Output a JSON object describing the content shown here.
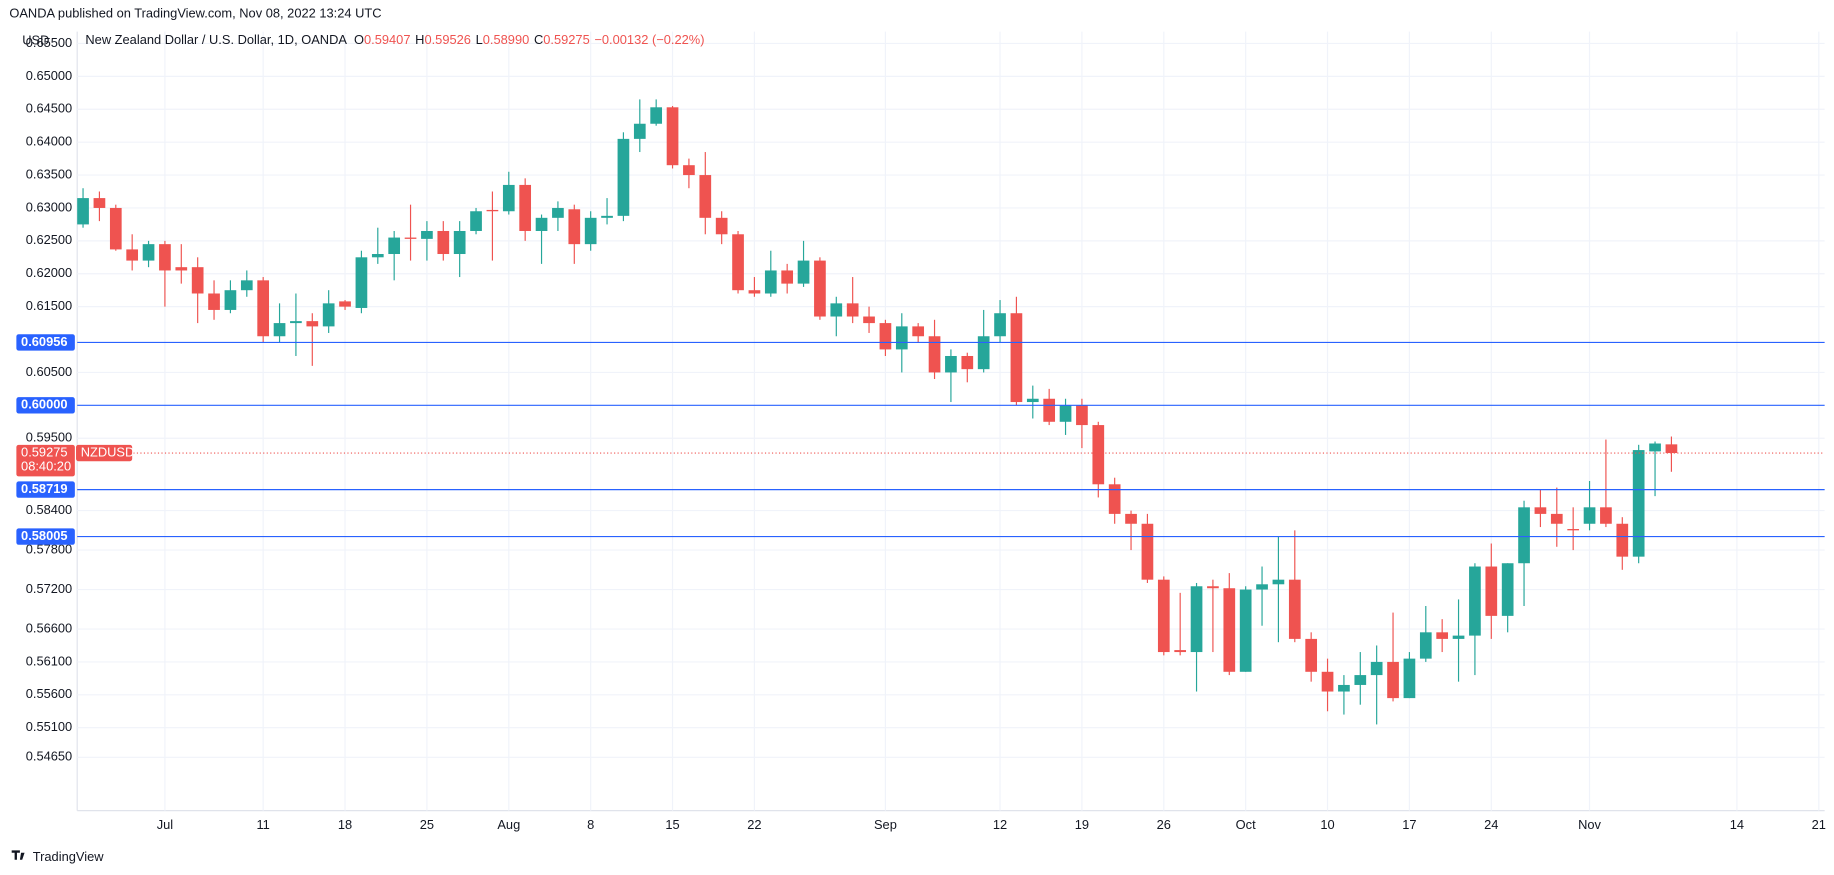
{
  "header": {
    "published": "OANDA published on TradingView.com, Nov 08, 2022 13:24 UTC",
    "ohlc": [
      {
        "key": "O",
        "text": "0.59407"
      },
      {
        "key": "H",
        "text": "0.59526"
      },
      {
        "key": "L",
        "text": "0.58990"
      },
      {
        "key": "C",
        "text": "0.59275"
      }
    ],
    "change": "−0.00132 (−0.22%)"
  },
  "footer": "TradingView",
  "chart_data": {
    "type": "candlestick",
    "title": "New Zealand Dollar / U.S. Dollar, 1D, OANDA",
    "y_axis_label": "USD",
    "up_color": "#26a69a",
    "down_color": "#ef5350",
    "line_color": "#2962ff",
    "categories": [
      null,
      null,
      null,
      null,
      null,
      "Jul",
      null,
      null,
      null,
      null,
      null,
      "11",
      null,
      null,
      null,
      null,
      "18",
      null,
      null,
      null,
      null,
      "25",
      null,
      null,
      null,
      null,
      "Aug",
      null,
      null,
      null,
      null,
      "8",
      null,
      null,
      null,
      null,
      "15",
      null,
      null,
      null,
      null,
      "22",
      null,
      null,
      null,
      null,
      null,
      null,
      null,
      "Sep",
      null,
      null,
      null,
      null,
      null,
      null,
      "12",
      null,
      null,
      null,
      null,
      "19",
      null,
      null,
      null,
      null,
      "26",
      null,
      null,
      null,
      null,
      "Oct",
      null,
      null,
      null,
      null,
      "10",
      null,
      null,
      null,
      null,
      "17",
      null,
      null,
      null,
      null,
      "24",
      null,
      null,
      null,
      null,
      null,
      "Nov",
      null,
      null,
      null,
      null,
      null,
      null,
      null,
      null,
      "14",
      null,
      null,
      null,
      null,
      "21"
    ],
    "open": [
      0.6275,
      0.6315,
      0.63,
      0.6237,
      0.622,
      0.6245,
      0.621,
      0.621,
      0.617,
      0.6145,
      0.6175,
      0.619,
      0.6105,
      0.6125,
      0.6128,
      0.612,
      0.6158,
      0.6148,
      0.6225,
      0.623,
      0.6255,
      0.6253,
      0.6265,
      0.623,
      0.6265,
      0.6297,
      0.6295,
      0.6335,
      0.6265,
      0.6285,
      0.6298,
      0.6245,
      0.6285,
      0.6288,
      0.6405,
      0.6428,
      0.6453,
      0.6365,
      0.635,
      0.6285,
      0.626,
      0.6175,
      0.617,
      0.6205,
      0.6185,
      0.622,
      0.6135,
      0.6155,
      0.6135,
      0.6125,
      0.6085,
      0.612,
      0.6105,
      0.605,
      0.6075,
      0.6055,
      0.6105,
      0.614,
      0.6005,
      0.601,
      0.5975,
      0.6,
      0.597,
      0.588,
      0.5835,
      0.582,
      0.5735,
      0.5628,
      0.5625,
      0.5725,
      0.5722,
      0.5595,
      0.572,
      0.5728,
      0.5735,
      0.5645,
      0.5595,
      0.5565,
      0.5575,
      0.559,
      0.561,
      0.5555,
      0.5615,
      0.5655,
      0.5645,
      0.565,
      0.5755,
      0.568,
      0.576,
      0.5845,
      0.5835,
      0.5812,
      0.582,
      0.5845,
      0.582,
      0.577,
      0.593,
      0.59407,
      null,
      null,
      null,
      null,
      null,
      null,
      null,
      null,
      null
    ],
    "high": [
      0.633,
      0.6325,
      0.6305,
      0.626,
      0.625,
      0.625,
      0.6245,
      0.6225,
      0.619,
      0.619,
      0.6205,
      0.6195,
      0.6155,
      0.617,
      0.614,
      0.6175,
      0.616,
      0.6235,
      0.627,
      0.6265,
      0.6305,
      0.628,
      0.628,
      0.628,
      0.63,
      0.6325,
      0.6355,
      0.6345,
      0.629,
      0.631,
      0.6305,
      0.6295,
      0.6315,
      0.6415,
      0.6465,
      0.6465,
      0.6455,
      0.6375,
      0.6385,
      0.6295,
      0.6265,
      0.6195,
      0.6235,
      0.6215,
      0.625,
      0.6225,
      0.6165,
      0.6195,
      0.615,
      0.613,
      0.614,
      0.6125,
      0.613,
      0.6085,
      0.608,
      0.6145,
      0.616,
      0.6165,
      0.603,
      0.6025,
      0.601,
      0.601,
      0.5975,
      0.589,
      0.584,
      0.5835,
      0.574,
      0.5715,
      0.573,
      0.5735,
      0.5745,
      0.5725,
      0.5755,
      0.58,
      0.581,
      0.5655,
      0.5615,
      0.559,
      0.5625,
      0.5635,
      0.5685,
      0.5625,
      0.5695,
      0.5675,
      0.5705,
      0.576,
      0.579,
      0.576,
      0.5855,
      0.5872,
      0.5875,
      0.5845,
      0.5885,
      0.5948,
      0.583,
      0.594,
      0.5945,
      0.59526,
      null,
      null,
      null,
      null,
      null,
      null,
      null,
      null,
      null
    ],
    "low": [
      0.627,
      0.628,
      0.6235,
      0.6205,
      0.621,
      0.615,
      0.6185,
      0.6125,
      0.613,
      0.614,
      0.6165,
      0.6095,
      0.6095,
      0.6075,
      0.606,
      0.611,
      0.6145,
      0.614,
      0.6215,
      0.619,
      0.622,
      0.622,
      0.622,
      0.6195,
      0.626,
      0.622,
      0.629,
      0.625,
      0.6215,
      0.6265,
      0.6215,
      0.6235,
      0.6275,
      0.628,
      0.6385,
      0.6425,
      0.636,
      0.633,
      0.626,
      0.6245,
      0.617,
      0.6165,
      0.6165,
      0.617,
      0.618,
      0.613,
      0.6105,
      0.6125,
      0.611,
      0.6075,
      0.605,
      0.6095,
      0.604,
      0.6005,
      0.6035,
      0.605,
      0.6095,
      0.6,
      0.598,
      0.597,
      0.5955,
      0.5935,
      0.586,
      0.582,
      0.578,
      0.573,
      0.562,
      0.562,
      0.5565,
      0.5625,
      0.559,
      0.5595,
      0.5665,
      0.564,
      0.564,
      0.558,
      0.5535,
      0.553,
      0.5545,
      0.5515,
      0.555,
      0.5555,
      0.561,
      0.5625,
      0.558,
      0.559,
      0.5645,
      0.5655,
      0.5695,
      0.5815,
      0.5785,
      0.578,
      0.581,
      0.5815,
      0.575,
      0.576,
      0.5862,
      0.5899,
      null,
      null,
      null,
      null,
      null,
      null,
      null,
      null,
      null
    ],
    "close": [
      0.6315,
      0.63,
      0.6237,
      0.622,
      0.6245,
      0.6205,
      0.6205,
      0.617,
      0.6145,
      0.6175,
      0.619,
      0.6105,
      0.6125,
      0.6128,
      0.612,
      0.6155,
      0.615,
      0.6225,
      0.623,
      0.6255,
      0.6253,
      0.6265,
      0.623,
      0.6265,
      0.6295,
      0.6295,
      0.6335,
      0.6265,
      0.6285,
      0.63,
      0.6245,
      0.6285,
      0.6288,
      0.6405,
      0.6428,
      0.6453,
      0.6365,
      0.635,
      0.6285,
      0.626,
      0.6175,
      0.617,
      0.6205,
      0.6185,
      0.622,
      0.6135,
      0.6155,
      0.6135,
      0.6125,
      0.6085,
      0.612,
      0.6105,
      0.605,
      0.6075,
      0.6055,
      0.6105,
      0.614,
      0.6005,
      0.601,
      0.5975,
      0.6,
      0.597,
      0.588,
      0.5835,
      0.582,
      0.5735,
      0.5625,
      0.5625,
      0.5725,
      0.5722,
      0.5595,
      0.572,
      0.5728,
      0.5735,
      0.5645,
      0.5595,
      0.5565,
      0.5575,
      0.559,
      0.561,
      0.5555,
      0.5615,
      0.5655,
      0.5645,
      0.565,
      0.5755,
      0.568,
      0.576,
      0.5845,
      0.5835,
      0.582,
      0.581,
      0.5845,
      0.582,
      0.577,
      0.5932,
      0.5942,
      0.59275,
      null,
      null,
      null,
      null,
      null,
      null,
      null,
      null,
      null
    ],
    "ylim": [
      0.5384,
      0.6568
    ],
    "yticks": [
      {
        "value": 0.655,
        "label": "0.65500"
      },
      {
        "value": 0.65,
        "label": "0.65000"
      },
      {
        "value": 0.645,
        "label": "0.64500"
      },
      {
        "value": 0.64,
        "label": "0.64000"
      },
      {
        "value": 0.635,
        "label": "0.63500"
      },
      {
        "value": 0.63,
        "label": "0.63000"
      },
      {
        "value": 0.625,
        "label": "0.62500"
      },
      {
        "value": 0.62,
        "label": "0.62000"
      },
      {
        "value": 0.615,
        "label": "0.61500"
      },
      {
        "value": 0.605,
        "label": "0.60500"
      },
      {
        "value": 0.595,
        "label": "0.59500"
      },
      {
        "value": 0.584,
        "label": "0.58400"
      },
      {
        "value": 0.578,
        "label": "0.57800"
      },
      {
        "value": 0.572,
        "label": "0.57200"
      },
      {
        "value": 0.566,
        "label": "0.56600"
      },
      {
        "value": 0.561,
        "label": "0.56100"
      },
      {
        "value": 0.556,
        "label": "0.55600"
      },
      {
        "value": 0.551,
        "label": "0.55100"
      },
      {
        "value": 0.5465,
        "label": "0.54650"
      }
    ],
    "grid": true,
    "price_lines": [
      0.60956,
      {
        "value": 0.6,
        "label": "0.60000"
      },
      0.58719,
      0.58005
    ],
    "last_price": 0.59275,
    "symbol": "NZDUSD",
    "countdown": "08:40:20"
  }
}
